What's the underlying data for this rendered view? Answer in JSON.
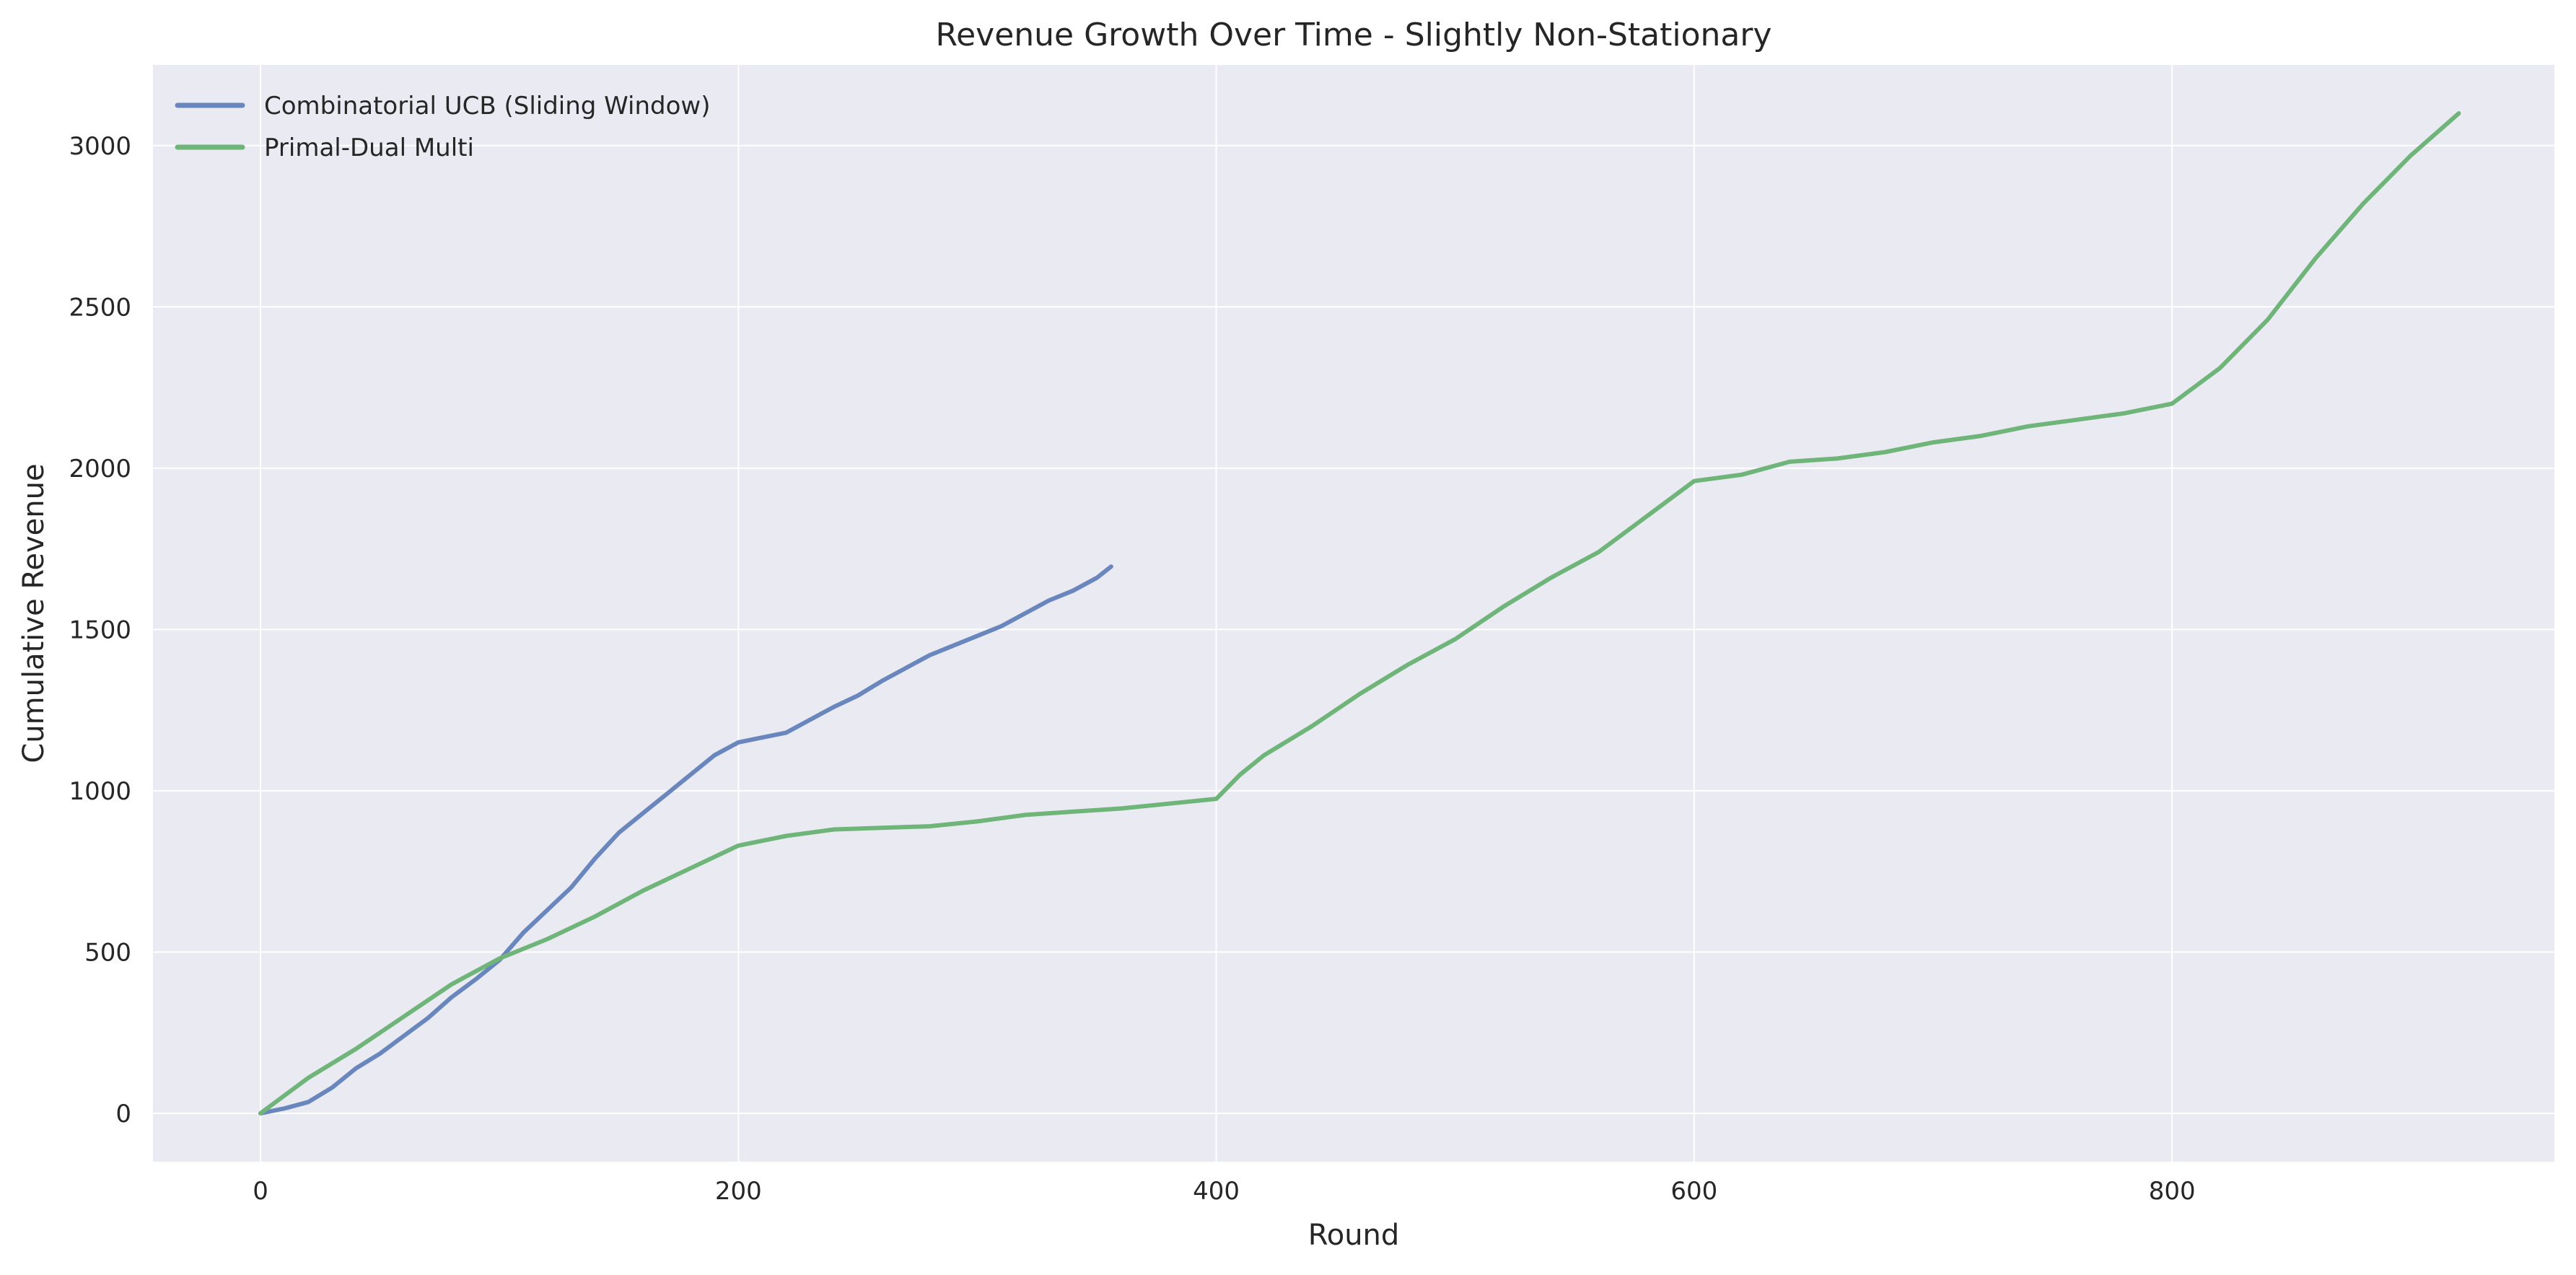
{
  "chart_data": {
    "type": "line",
    "title": "Revenue Growth Over Time - Slightly Non-Stationary",
    "xlabel": "Round",
    "ylabel": "Cumulative Revenue",
    "xlim": [
      -45,
      960
    ],
    "ylim": [
      -150,
      3250
    ],
    "xticks": [
      0,
      200,
      400,
      600,
      800
    ],
    "yticks": [
      0,
      500,
      1000,
      1500,
      2000,
      2500,
      3000
    ],
    "grid": true,
    "legend_position": "top-left",
    "colors": {
      "background": "#eaeaf2",
      "grid": "#ffffff",
      "text": "#262626"
    },
    "series": [
      {
        "name": "Combinatorial UCB (Sliding Window)",
        "color": "#6a87bd",
        "x": [
          0,
          10,
          20,
          30,
          40,
          50,
          60,
          70,
          80,
          90,
          100,
          110,
          120,
          130,
          140,
          150,
          160,
          170,
          180,
          190,
          200,
          210,
          220,
          230,
          240,
          250,
          260,
          270,
          280,
          290,
          300,
          310,
          320,
          330,
          340,
          350,
          356
        ],
        "y": [
          0,
          15,
          35,
          80,
          140,
          185,
          240,
          295,
          360,
          415,
          475,
          560,
          630,
          700,
          790,
          870,
          930,
          990,
          1050,
          1110,
          1150,
          1165,
          1180,
          1220,
          1260,
          1295,
          1340,
          1380,
          1420,
          1450,
          1480,
          1510,
          1550,
          1590,
          1620,
          1660,
          1695
        ]
      },
      {
        "name": "Primal-Dual Multi",
        "color": "#6fb57a",
        "x": [
          0,
          20,
          40,
          60,
          80,
          100,
          120,
          140,
          160,
          180,
          200,
          220,
          240,
          260,
          280,
          300,
          320,
          340,
          360,
          380,
          400,
          410,
          420,
          440,
          460,
          480,
          500,
          520,
          540,
          560,
          580,
          600,
          620,
          640,
          660,
          680,
          700,
          720,
          740,
          760,
          780,
          800,
          820,
          840,
          860,
          880,
          900,
          920
        ],
        "y": [
          0,
          110,
          200,
          300,
          400,
          480,
          540,
          610,
          690,
          760,
          830,
          860,
          880,
          885,
          890,
          905,
          925,
          935,
          945,
          960,
          975,
          1050,
          1110,
          1200,
          1300,
          1390,
          1470,
          1570,
          1660,
          1740,
          1850,
          1960,
          1980,
          2020,
          2030,
          2050,
          2080,
          2100,
          2130,
          2150,
          2170,
          2200,
          2310,
          2460,
          2650,
          2820,
          2970,
          3100
        ]
      }
    ]
  }
}
